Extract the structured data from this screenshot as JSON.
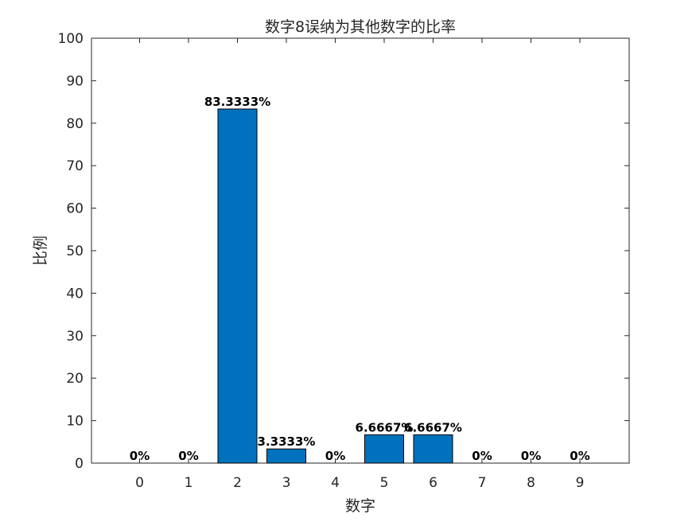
{
  "chart_data": {
    "type": "bar",
    "title": "数字8误纳为其他数字的比率",
    "xlabel": "数字",
    "ylabel": "比例",
    "categories": [
      "0",
      "1",
      "2",
      "3",
      "4",
      "5",
      "6",
      "7",
      "8",
      "9"
    ],
    "values": [
      0,
      0,
      83.3333,
      3.3333,
      0,
      6.6667,
      6.6667,
      0,
      0,
      0
    ],
    "data_labels": [
      "0%",
      "0%",
      "83.3333%",
      "3.3333%",
      "0%",
      "6.6667%",
      "6.6667%",
      "0%",
      "0%",
      "0%"
    ],
    "ylim": [
      0,
      100
    ],
    "yticks": [
      "0",
      "10",
      "20",
      "30",
      "40",
      "50",
      "60",
      "70",
      "80",
      "90",
      "100"
    ],
    "grid": false,
    "bar_color": "#0072BD"
  }
}
